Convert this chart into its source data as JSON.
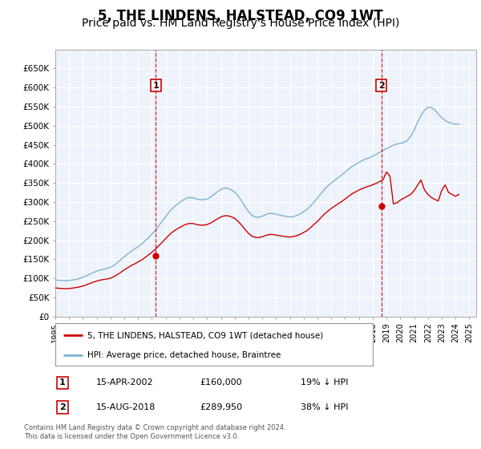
{
  "title": "5, THE LINDENS, HALSTEAD, CO9 1WT",
  "subtitle": "Price paid vs. HM Land Registry's House Price Index (HPI)",
  "title_fontsize": 12,
  "subtitle_fontsize": 10,
  "plot_bg_color": "#eef3fb",
  "line_color_red": "#cc0000",
  "line_color_blue": "#7fb3d3",
  "grid_color": "#ffffff",
  "ylim": [
    0,
    700000
  ],
  "yticks": [
    0,
    50000,
    100000,
    150000,
    200000,
    250000,
    300000,
    350000,
    400000,
    450000,
    500000,
    550000,
    600000,
    650000
  ],
  "ytick_labels": [
    "£0",
    "£50K",
    "£100K",
    "£150K",
    "£200K",
    "£250K",
    "£300K",
    "£350K",
    "£400K",
    "£450K",
    "£500K",
    "£550K",
    "£600K",
    "£650K"
  ],
  "purchase1_year": 2002.29,
  "purchase1_price": 160000,
  "purchase1_label": "1",
  "purchase1_date": "15-APR-2002",
  "purchase1_amount": "£160,000",
  "purchase1_pct": "19% ↓ HPI",
  "purchase2_year": 2018.62,
  "purchase2_price": 289950,
  "purchase2_label": "2",
  "purchase2_date": "15-AUG-2018",
  "purchase2_amount": "£289,950",
  "purchase2_pct": "38% ↓ HPI",
  "legend_label_red": "5, THE LINDENS, HALSTEAD, CO9 1WT (detached house)",
  "legend_label_blue": "HPI: Average price, detached house, Braintree",
  "footer": "Contains HM Land Registry data © Crown copyright and database right 2024.\nThis data is licensed under the Open Government Licence v3.0.",
  "hpi_years": [
    1995.0,
    1995.25,
    1995.5,
    1995.75,
    1996.0,
    1996.25,
    1996.5,
    1996.75,
    1997.0,
    1997.25,
    1997.5,
    1997.75,
    1998.0,
    1998.25,
    1998.5,
    1998.75,
    1999.0,
    1999.25,
    1999.5,
    1999.75,
    2000.0,
    2000.25,
    2000.5,
    2000.75,
    2001.0,
    2001.25,
    2001.5,
    2001.75,
    2002.0,
    2002.25,
    2002.5,
    2002.75,
    2003.0,
    2003.25,
    2003.5,
    2003.75,
    2004.0,
    2004.25,
    2004.5,
    2004.75,
    2005.0,
    2005.25,
    2005.5,
    2005.75,
    2006.0,
    2006.25,
    2006.5,
    2006.75,
    2007.0,
    2007.25,
    2007.5,
    2007.75,
    2008.0,
    2008.25,
    2008.5,
    2008.75,
    2009.0,
    2009.25,
    2009.5,
    2009.75,
    2010.0,
    2010.25,
    2010.5,
    2010.75,
    2011.0,
    2011.25,
    2011.5,
    2011.75,
    2012.0,
    2012.25,
    2012.5,
    2012.75,
    2013.0,
    2013.25,
    2013.5,
    2013.75,
    2014.0,
    2014.25,
    2014.5,
    2014.75,
    2015.0,
    2015.25,
    2015.5,
    2015.75,
    2016.0,
    2016.25,
    2016.5,
    2016.75,
    2017.0,
    2017.25,
    2017.5,
    2017.75,
    2018.0,
    2018.25,
    2018.5,
    2018.75,
    2019.0,
    2019.25,
    2019.5,
    2019.75,
    2020.0,
    2020.25,
    2020.5,
    2020.75,
    2021.0,
    2021.25,
    2021.5,
    2021.75,
    2022.0,
    2022.25,
    2022.5,
    2022.75,
    2023.0,
    2023.25,
    2023.5,
    2023.75,
    2024.0,
    2024.25
  ],
  "hpi_values": [
    96000,
    95000,
    94500,
    94000,
    94500,
    96000,
    97500,
    99500,
    103000,
    107000,
    111000,
    115000,
    119000,
    122000,
    124000,
    126000,
    129000,
    134000,
    141000,
    149000,
    157000,
    164000,
    171000,
    177000,
    183000,
    190000,
    198000,
    207000,
    216000,
    226000,
    238000,
    250000,
    262000,
    274000,
    284000,
    292000,
    298000,
    305000,
    310000,
    312000,
    311000,
    308000,
    306000,
    306000,
    308000,
    313000,
    320000,
    327000,
    333000,
    337000,
    336000,
    332000,
    326000,
    316000,
    303000,
    288000,
    275000,
    265000,
    261000,
    260000,
    263000,
    267000,
    270000,
    270000,
    268000,
    266000,
    264000,
    262000,
    261000,
    262000,
    265000,
    269000,
    275000,
    281000,
    290000,
    300000,
    311000,
    322000,
    333000,
    342000,
    350000,
    357000,
    364000,
    371000,
    378000,
    386000,
    393000,
    398000,
    404000,
    409000,
    413000,
    416000,
    420000,
    425000,
    430000,
    435000,
    440000,
    445000,
    449000,
    452000,
    454000,
    456000,
    461000,
    472000,
    488000,
    509000,
    527000,
    540000,
    548000,
    548000,
    541000,
    531000,
    521000,
    514000,
    509000,
    506000,
    504000,
    504000
  ],
  "red_values": [
    75000,
    74000,
    73500,
    73000,
    73500,
    74500,
    76000,
    77500,
    80000,
    83000,
    86500,
    90000,
    93000,
    95500,
    97000,
    98500,
    100500,
    104500,
    110000,
    116000,
    122500,
    128000,
    133500,
    138000,
    143000,
    148000,
    154500,
    161500,
    168500,
    176500,
    185500,
    195000,
    204500,
    213500,
    221500,
    228000,
    233000,
    238000,
    242000,
    244000,
    243500,
    241000,
    239500,
    239500,
    241000,
    245000,
    250500,
    256000,
    261000,
    264000,
    264000,
    261500,
    257000,
    249500,
    239500,
    228000,
    218000,
    210500,
    207500,
    207000,
    209000,
    212500,
    215000,
    215000,
    213500,
    212000,
    210500,
    209000,
    208500,
    209500,
    212000,
    215500,
    220500,
    225500,
    233000,
    241500,
    249500,
    259000,
    268500,
    276000,
    283500,
    289500,
    295500,
    301500,
    308000,
    315000,
    321500,
    326500,
    331500,
    335500,
    339000,
    342000,
    345000,
    349000,
    353500,
    358500,
    379000,
    368000,
    295000,
    298000,
    305000,
    310000,
    315000,
    320000,
    330000,
    344000,
    358000,
    332000,
    320000,
    312000,
    307000,
    303000,
    330000,
    345000,
    325000,
    320000,
    315000,
    320000
  ]
}
